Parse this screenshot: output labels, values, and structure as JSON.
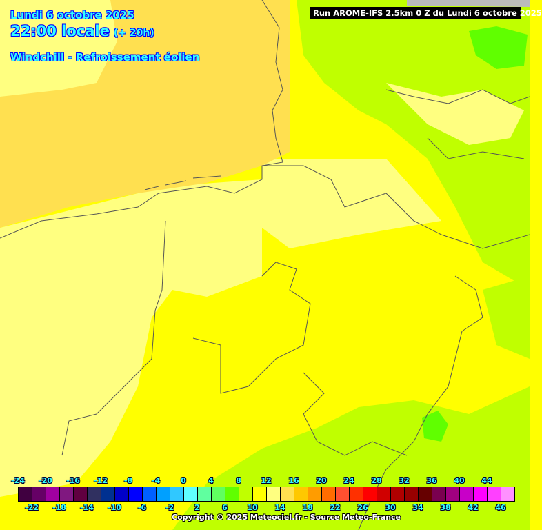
{
  "header": {
    "date": "Lundi 6 octobre 2025",
    "time": "22:00 locale",
    "offset": "(+ 20h)",
    "parameter": "Windchill - Refroissement éolien",
    "run_info": "Run AROME-IFS 2.5km 0 Z du Lundi 6 octobre 2025"
  },
  "legend": {
    "values": [
      -24,
      -22,
      -20,
      -18,
      -16,
      -14,
      -12,
      -10,
      -8,
      -6,
      -4,
      -2,
      0,
      2,
      4,
      6,
      8,
      10,
      12,
      14,
      16,
      18,
      20,
      22,
      24,
      26,
      28,
      30,
      32,
      34,
      36,
      38,
      40,
      42,
      44,
      46
    ],
    "labels": [
      "-24",
      "-22",
      "-20",
      "-18",
      "-16",
      "-14",
      "-12",
      "-10",
      "-8",
      "-6",
      "-4",
      "-2",
      "0",
      "2",
      "4",
      "6",
      "8",
      "10",
      "12",
      "14",
      "16",
      "18",
      "20",
      "22",
      "24",
      "26",
      "28",
      "30",
      "32",
      "34",
      "36",
      "38",
      "40",
      "42",
      "44",
      "46"
    ],
    "colors": [
      "#400040",
      "#660066",
      "#a000a0",
      "#801880",
      "#600040",
      "#303060",
      "#003090",
      "#0000c8",
      "#0000ff",
      "#0060ff",
      "#00a0ff",
      "#30c8ff",
      "#60ffff",
      "#60ff9f",
      "#60ff60",
      "#60ff00",
      "#c0ff00",
      "#ffff00",
      "#ffff80",
      "#ffe050",
      "#ffc800",
      "#ff9c00",
      "#ff6c00",
      "#ff5030",
      "#ff3000",
      "#ff0000",
      "#d00000",
      "#b00000",
      "#980000",
      "#660000",
      "#7a0050",
      "#a00080",
      "#c800c8",
      "#ff00ff",
      "#ff40ff",
      "#ff90ff"
    ]
  },
  "footer": {
    "copyright": "Copyright © 2025 Meteociel.fr - Source Meteo-France"
  }
}
